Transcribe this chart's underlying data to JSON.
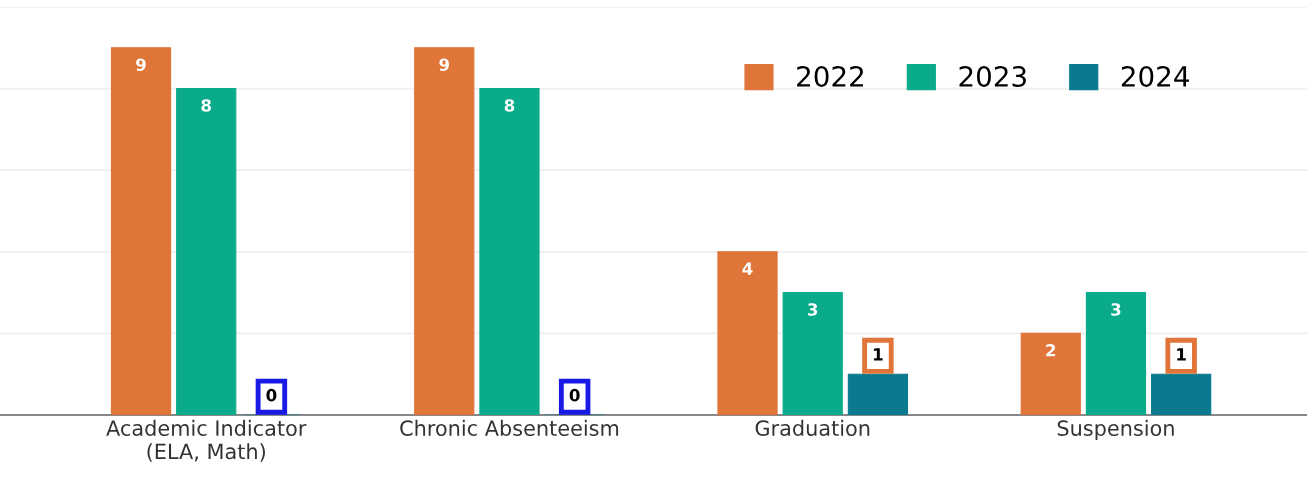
{
  "chart_data": {
    "type": "bar",
    "categories": [
      "Academic Indicator\n(ELA, Math)",
      "Chronic Absenteeism",
      "Graduation",
      "Suspension"
    ],
    "series": [
      {
        "name": "2022",
        "color": "#e07539",
        "values": [
          9,
          9,
          4,
          2
        ]
      },
      {
        "name": "2023",
        "color": "#0aab8a",
        "values": [
          8,
          8,
          3,
          3
        ]
      },
      {
        "name": "2024",
        "color": "#0a7a8f",
        "values": [
          0,
          0,
          1,
          1
        ]
      }
    ],
    "ylim": [
      0,
      10
    ],
    "yticks": [
      {
        "value": 0,
        "label": null
      },
      {
        "value": 2,
        "label": null
      },
      {
        "value": 4,
        "label": null
      },
      {
        "value": 6,
        "label": null
      },
      {
        "value": 8,
        "label": null
      },
      {
        "value": 10,
        "label": null
      }
    ],
    "tick_labels": "x",
    "grid": "y",
    "legend": "top right",
    "data_labels": true
  }
}
